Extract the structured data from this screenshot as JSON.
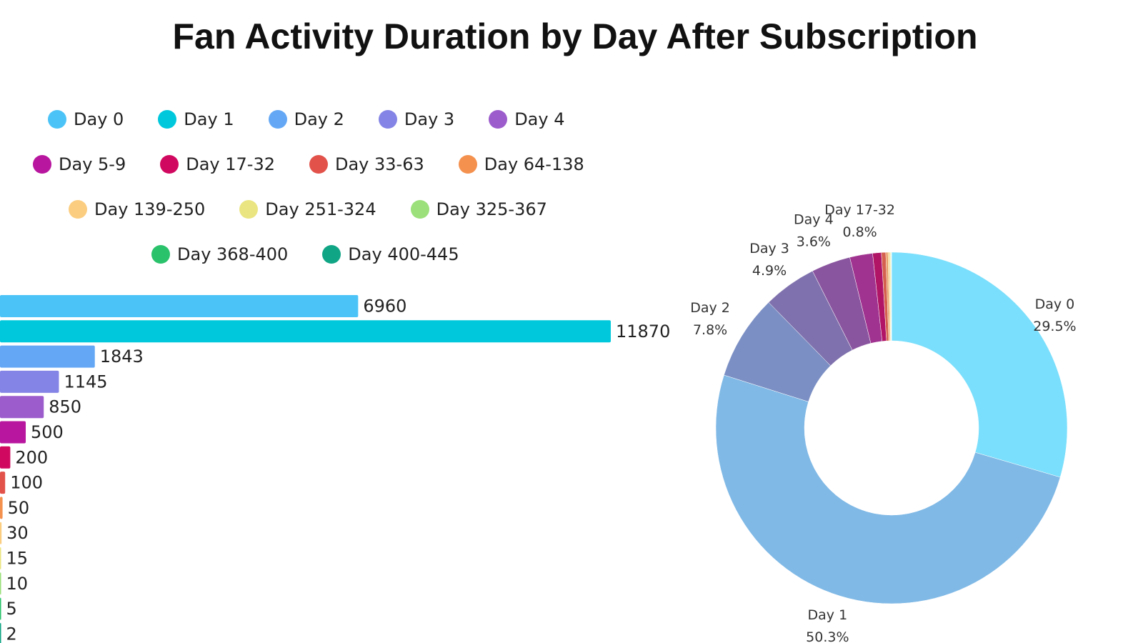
{
  "title": "Fan Activity Duration by Day After Subscription",
  "colors": {
    "Day 0": "#4cc3f7",
    "Day 1": "#00c8dc",
    "Day 2": "#64a8f5",
    "Day 3": "#8484e6",
    "Day 4": "#9c5ccc",
    "Day 5-9": "#b8169e",
    "Day 17-32": "#d1085f",
    "Day 33-63": "#e2524a",
    "Day 64-138": "#f4914f",
    "Day 139-250": "#fbcd80",
    "Day 251-324": "#eae580",
    "Day 325-367": "#9be07a",
    "Day 368-400": "#2ac26b",
    "Day 400-445": "#10a585"
  },
  "legend": [
    [
      "Day 0",
      "Day 1",
      "Day 2",
      "Day 3",
      "Day 4"
    ],
    [
      "Day 5-9",
      "Day 17-32",
      "Day 33-63",
      "Day 64-138"
    ],
    [
      "Day 139-250",
      "Day 251-324",
      "Day 325-367"
    ],
    [
      "Day 368-400",
      "Day 400-445"
    ]
  ],
  "chart_data": [
    {
      "type": "bar",
      "orientation": "horizontal",
      "title": "",
      "values": [
        6960,
        11870,
        1843,
        1145,
        850,
        500,
        200,
        100,
        50,
        30,
        15,
        10,
        5,
        2
      ],
      "data_labels": [
        "6960",
        "11870",
        "1843",
        "1145",
        "850",
        "500",
        "200",
        "100",
        "50",
        "30",
        "15",
        "10",
        "5",
        "2"
      ],
      "bar_colors": [
        "#4cc3f7",
        "#00c8dc",
        "#64a8f5",
        "#8484e6",
        "#9c5ccc",
        "#b8169e",
        "#d1085f",
        "#e2524a",
        "#f4914f",
        "#fbcd80",
        "#eae580",
        "#9be07a",
        "#2ac26b",
        "#10a585"
      ],
      "axis_visible": false,
      "grid": false
    },
    {
      "type": "pie",
      "donut": true,
      "slices": [
        {
          "name": "Day 0",
          "value": 29.5,
          "color": "#7adffc",
          "label": "Day 0",
          "pct_label": "29.5%"
        },
        {
          "name": "Day 1",
          "value": 50.3,
          "color": "#80b9e6",
          "label": "Day 1",
          "pct_label": "50.3%"
        },
        {
          "name": "Day 2",
          "value": 7.8,
          "color": "#7b8fc4",
          "label": "Day 2",
          "pct_label": "7.8%"
        },
        {
          "name": "Day 3",
          "value": 4.9,
          "color": "#7f71ad",
          "label": "Day 3",
          "pct_label": "4.9%"
        },
        {
          "name": "Day 4",
          "value": 3.6,
          "color": "#8a559f",
          "label": "Day 4",
          "pct_label": "3.6%"
        },
        {
          "name": "Day 5-9",
          "value": 2.1,
          "color": "#a0338f",
          "label": "",
          "pct_label": ""
        },
        {
          "name": "Day 17-32",
          "value": 0.8,
          "color": "#b01566",
          "label": "Day 17-32",
          "pct_label": "0.8%"
        },
        {
          "name": "Day 33-63",
          "value": 0.4,
          "color": "#d4604e",
          "label": "",
          "pct_label": ""
        },
        {
          "name": "Day 64-138",
          "value": 0.2,
          "color": "#e89a62",
          "label": "",
          "pct_label": ""
        },
        {
          "name": "Day 139-250",
          "value": 0.15,
          "color": "#f2cf88",
          "label": "",
          "pct_label": ""
        },
        {
          "name": "Day 251-324",
          "value": 0.08,
          "color": "#eae580",
          "label": "",
          "pct_label": ""
        },
        {
          "name": "Day 325-367",
          "value": 0.05,
          "color": "#9be07a",
          "label": "",
          "pct_label": ""
        },
        {
          "name": "Day 368-400",
          "value": 0.03,
          "color": "#2ac26b",
          "label": "",
          "pct_label": ""
        },
        {
          "name": "Day 400-445",
          "value": 0.01,
          "color": "#10a585",
          "label": "",
          "pct_label": ""
        }
      ]
    }
  ]
}
